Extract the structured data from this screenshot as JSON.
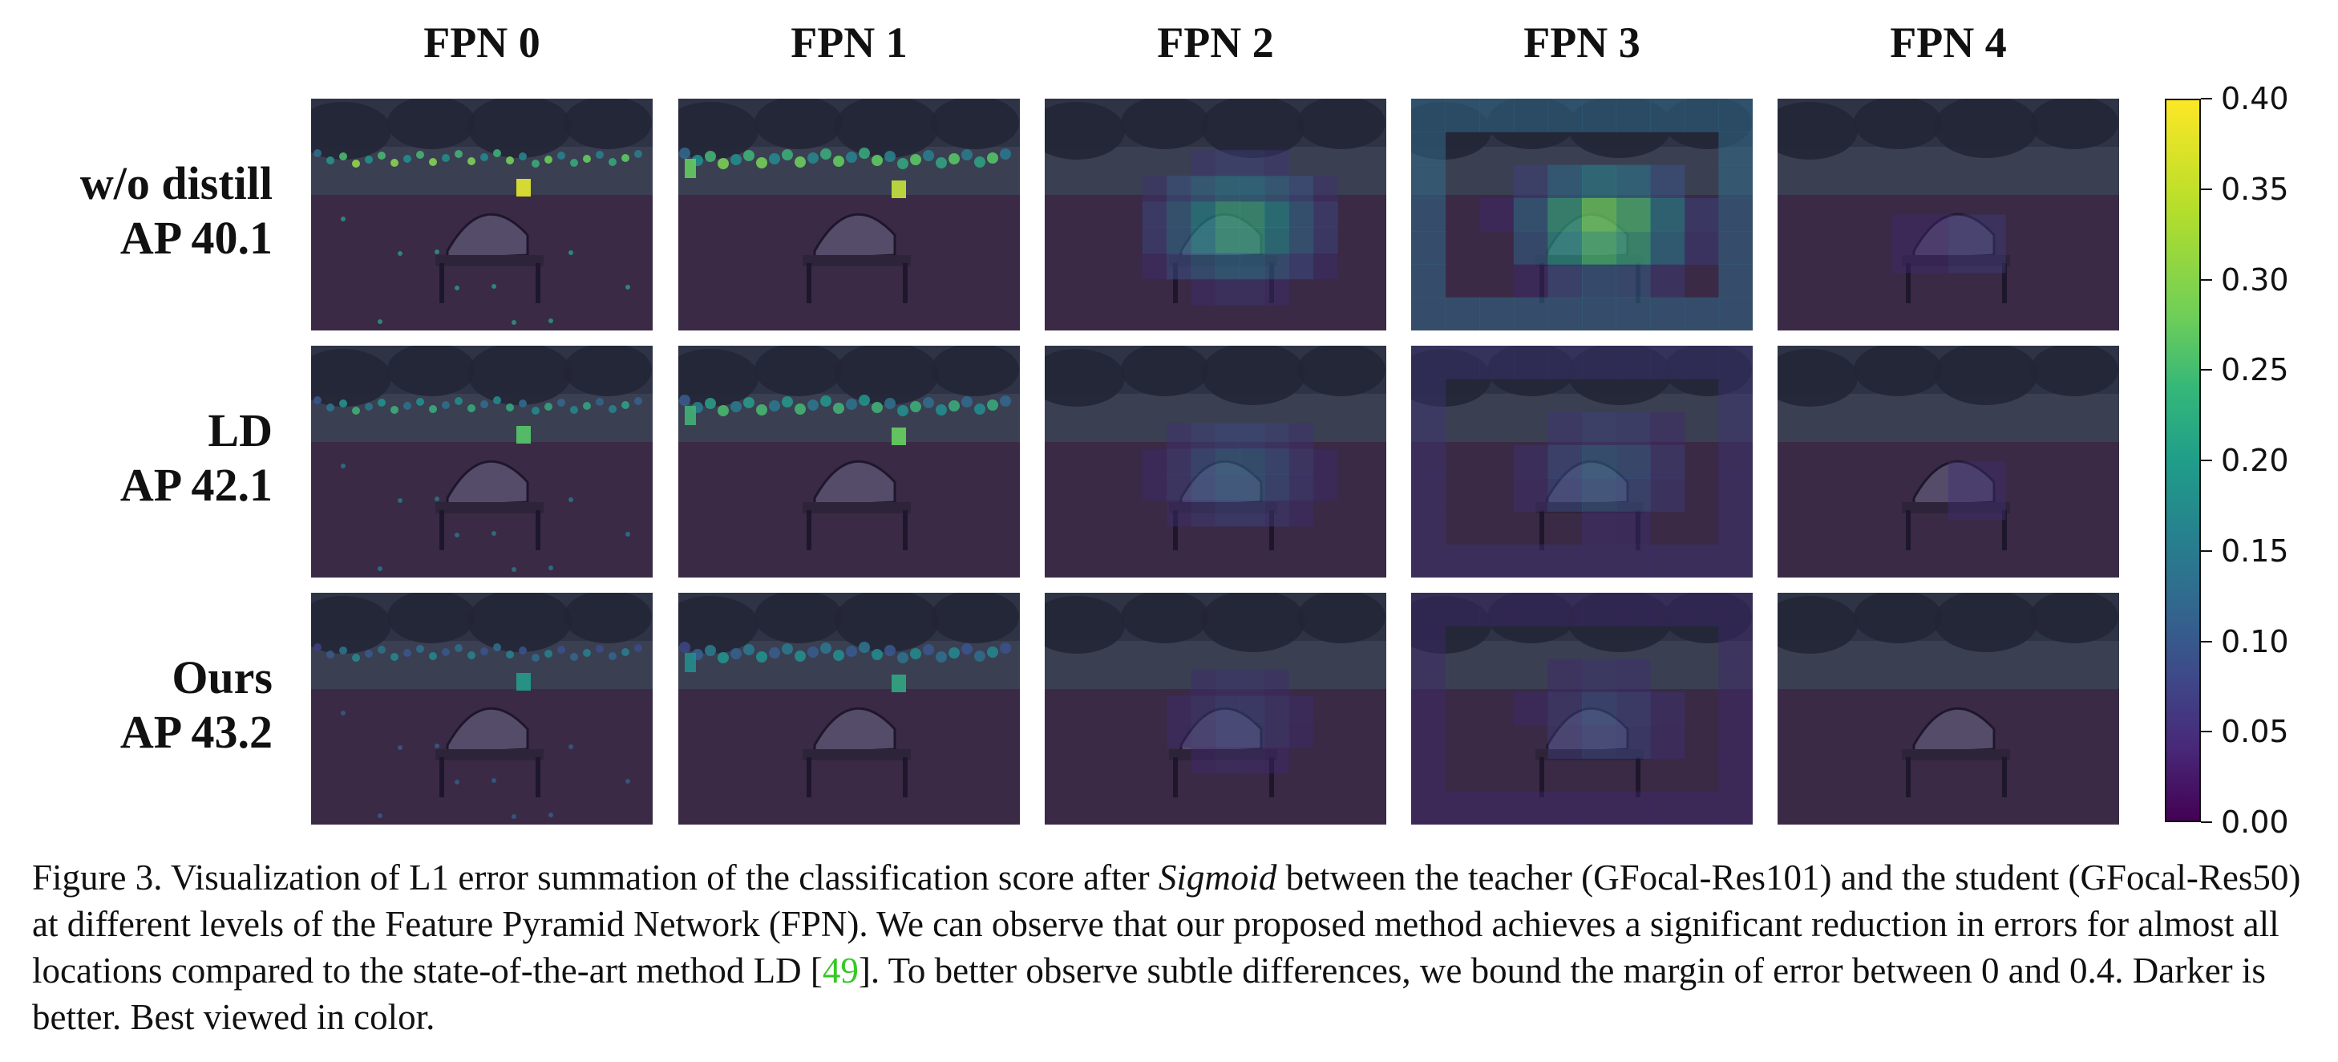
{
  "column_titles": [
    "FPN 0",
    "FPN 1",
    "FPN 2",
    "FPN 3",
    "FPN 4"
  ],
  "rows": [
    {
      "name": "w/o distill",
      "ap": "AP 40.1"
    },
    {
      "name": "LD",
      "ap": "AP 42.1"
    },
    {
      "name": "Ours",
      "ap": "AP 43.2"
    }
  ],
  "colorbar": {
    "colormap": "viridis",
    "ticks": [
      "0.00",
      "0.05",
      "0.10",
      "0.15",
      "0.20",
      "0.25",
      "0.30",
      "0.35",
      "0.40"
    ],
    "range": [
      0,
      0.4
    ]
  },
  "colors": {
    "viridis_low": "#440154",
    "viridis_mid": "#21918c",
    "viridis_high": "#fde725",
    "citation": "#34c924"
  },
  "caption": {
    "part1": "Figure 3. Visualization of L1 error summation of the classification score after ",
    "italic": "Sigmoid",
    "part2": " between the teacher (GFocal-Res101) and the student (GFocal-Res50) at different levels of the Feature Pyramid Network (FPN). We can observe that our proposed method achieves a significant reduction in errors for almost all locations compared to the state-of-the-art method LD [",
    "citation": "49",
    "part3": "]. To better observe subtle differences, we bound the margin of error between 0 and 0.4. Darker is better. Best viewed in color."
  }
}
